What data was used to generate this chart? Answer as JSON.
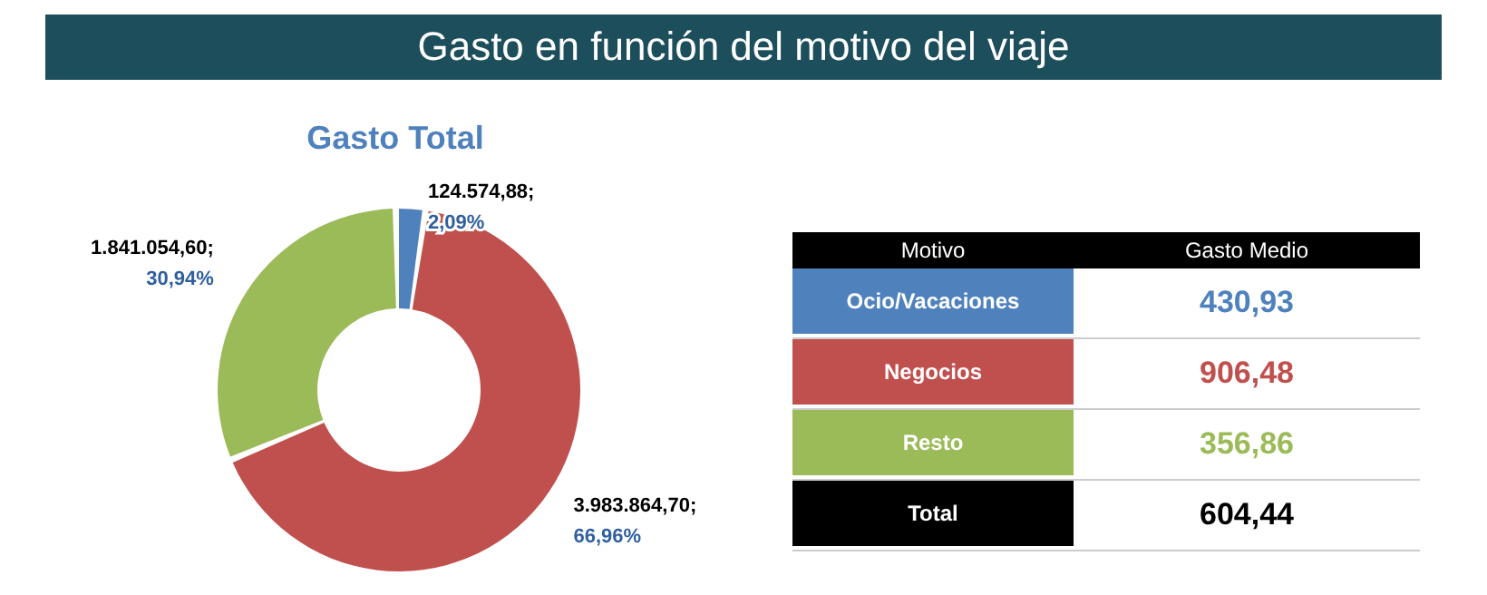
{
  "chart_data": [
    {
      "type": "donut",
      "title": "Gasto en función del motivo del viaje",
      "subtitle": "Gasto Total",
      "categories": [
        null,
        null,
        null
      ],
      "values": [
        124574.88,
        3983864.7,
        1841054.6
      ],
      "colors": [
        "#4f81bd",
        "#c0504d",
        "#9bbb59"
      ],
      "value_labels": [
        "124.574,88;\n2,09%",
        "3.983.864,70;\n66,96%",
        "1.841.054,60;\n30,94%"
      ]
    },
    {
      "type": "other",
      "xlabel": "Motivo",
      "ylabel": "Gasto Medio",
      "categories": [
        "Ocio/Vacaciones",
        "Negocios",
        "Resto",
        "Total"
      ],
      "values": [
        430.93,
        906.48,
        356.86,
        604.44
      ],
      "value_labels": [
        "430,93",
        "906,48",
        "356,86",
        "604,44"
      ],
      "colors": [
        "#4f81bd",
        "#c0504d",
        "#9bbb59",
        "#000000"
      ]
    }
  ]
}
